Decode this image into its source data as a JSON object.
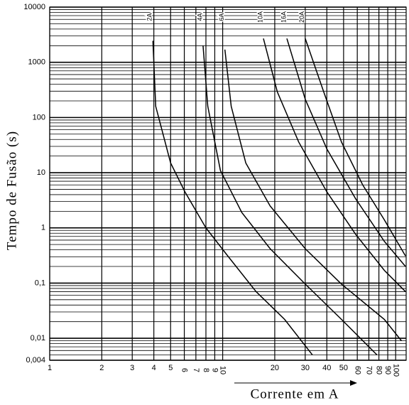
{
  "chart_data": {
    "type": "line",
    "x_label": "Corrente em A",
    "y_label": "Tempo de Fusão (s)",
    "xscale": "log",
    "yscale": "log",
    "xlim": [
      1,
      115
    ],
    "ylim": [
      0.004,
      10000
    ],
    "xticks": [
      1,
      2,
      3,
      4,
      5,
      6,
      7,
      8,
      9,
      10,
      20,
      30,
      40,
      50,
      60,
      70,
      80,
      90,
      100
    ],
    "yticks": [
      10000,
      1000,
      100,
      10,
      1,
      {
        "value": 0.1,
        "label": "0,1"
      },
      {
        "value": 0.01,
        "label": "0,01"
      },
      {
        "value": 0.004,
        "label": "0,004"
      }
    ],
    "grid": true,
    "minor_grid": true,
    "color": "#000000",
    "series": [
      {
        "name": "2A",
        "x": [
          3.95,
          4.1,
          5,
          6.05,
          8.0,
          10.7,
          15.6,
          22.8,
          33
        ],
        "values": [
          2450,
          160,
          15,
          4.5,
          1,
          0.31,
          0.07,
          0.022,
          0.005
        ]
      },
      {
        "name": "4A",
        "x": [
          7.7,
          8.2,
          9.7,
          12.9,
          18.8,
          30,
          48.6,
          78
        ],
        "values": [
          2000,
          160,
          11,
          1.9,
          0.42,
          0.096,
          0.022,
          0.005
        ]
      },
      {
        "name": "6A",
        "x": [
          10.3,
          11.2,
          13.6,
          18.8,
          30,
          48.6,
          86,
          108
        ],
        "values": [
          1700,
          160,
          15,
          2.5,
          0.42,
          0.096,
          0.022,
          0.009
        ]
      },
      {
        "name": "10A",
        "x": [
          17.2,
          20.7,
          27.5,
          40,
          58.6,
          86,
          114
        ],
        "values": [
          2700,
          290,
          36,
          4.5,
          0.77,
          0.17,
          0.07
        ]
      },
      {
        "name": "16A",
        "x": [
          23.5,
          30,
          40,
          58.6,
          86,
          114
        ],
        "values": [
          2700,
          215,
          27,
          3.4,
          0.57,
          0.2
        ]
      },
      {
        "name": "20A",
        "x": [
          30,
          38.4,
          48.6,
          64.5,
          86,
          114
        ],
        "values": [
          2700,
          290,
          36,
          6,
          1.4,
          0.31
        ]
      }
    ]
  }
}
